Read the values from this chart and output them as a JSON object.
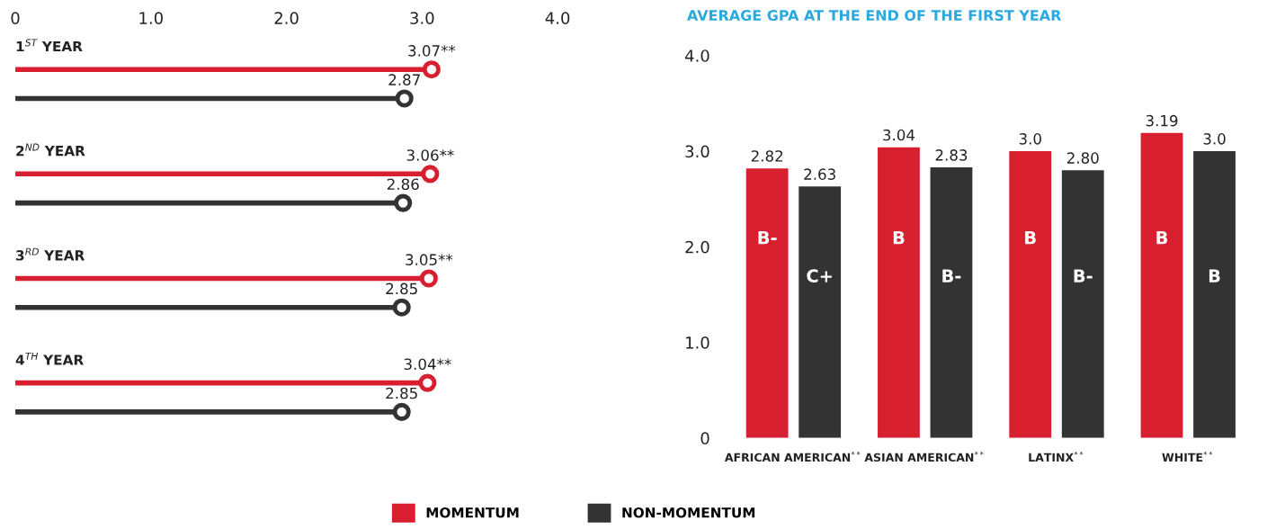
{
  "chart_data": [
    {
      "type": "lollipop",
      "orientation": "horizontal",
      "categories": [
        "1$^{ST}$ YEAR",
        "2$^{ND}$ YEAR",
        "3$^{RD}$ YEAR",
        "4$^{TH}$ YEAR"
      ],
      "series": [
        {
          "name": "MOMENTUM",
          "color": "#d71f30",
          "values": [
            3.07,
            3.06,
            3.05,
            3.04
          ],
          "value_labels": [
            "3.07**",
            "3.06**",
            "3.05**",
            "3.04**"
          ]
        },
        {
          "name": "NON-MOMENTUM",
          "color": "#333333",
          "values": [
            2.87,
            2.86,
            2.85,
            2.85
          ],
          "value_labels": [
            "2.87",
            "2.86",
            "2.85",
            "2.85"
          ]
        }
      ],
      "xlim": [
        0,
        4
      ],
      "xticks": [
        0,
        {
          "value": 1,
          "label": "1.0"
        },
        {
          "value": 2,
          "label": "2.0"
        },
        {
          "value": 3,
          "label": "3.0"
        },
        {
          "value": 4,
          "label": "4.0"
        }
      ],
      "marker": "circle",
      "grid": false,
      "legend": "bottom"
    },
    {
      "type": "bar",
      "title": "AVERAGE GPA AT THE END OF THE FIRST YEAR",
      "categories": [
        "AFRICAN AMERICAN$^{**}$",
        "ASIAN AMERICAN$^{**}$",
        "LATINX$^{**}$",
        "WHITE$^{**}$"
      ],
      "series": [
        {
          "name": "MOMENTUM",
          "color": "#d71f30",
          "values": [
            2.82,
            3.04,
            3.0,
            3.19
          ],
          "value_labels": [
            "2.82",
            "3.04",
            "3.0",
            "3.19"
          ]
        },
        {
          "name": "NON-MOMENTUM",
          "color": "#333333",
          "values": [
            2.63,
            2.83,
            2.8,
            3.0
          ],
          "value_labels": [
            "2.63",
            "2.83",
            "2.80",
            "3.0"
          ]
        }
      ],
      "ylim": [
        0,
        4
      ],
      "yticks": [
        0,
        {
          "value": 1,
          "label": "1.0"
        },
        {
          "value": 2,
          "label": "2.0"
        },
        {
          "value": 3,
          "label": "3.0"
        },
        {
          "value": 4,
          "label": "4.0"
        }
      ],
      "annotations": [
        "B-",
        "C+",
        "B",
        "B-",
        "B",
        "B-",
        "B",
        "B"
      ],
      "grid": false,
      "legend": "bottom"
    }
  ]
}
